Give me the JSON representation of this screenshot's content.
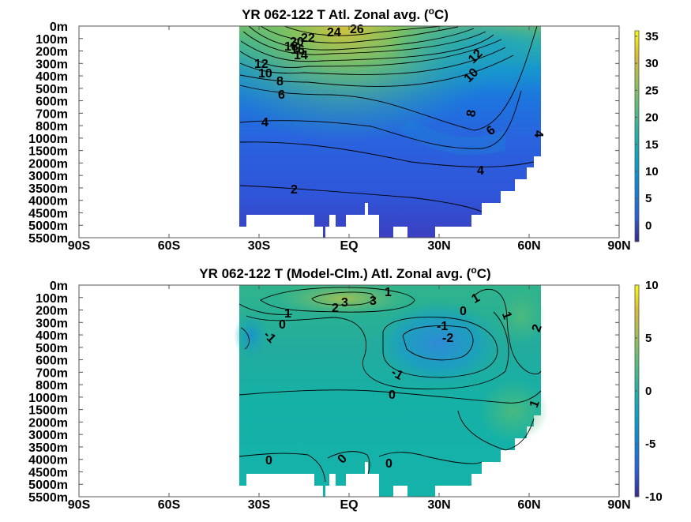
{
  "chart_data": [
    {
      "type": "heatmap",
      "title": "YR 062-122 T Atl. Zonal avg. (",
      "title_unit_sup": "o",
      "title_unit_end": "C)",
      "xlabel": "",
      "ylabel": "",
      "x_ticks": [
        "90S",
        "60S",
        "30S",
        "EQ",
        "30N",
        "60N",
        "90N"
      ],
      "x_range": [
        -90,
        90
      ],
      "y_ticks": [
        "0m",
        "100m",
        "200m",
        "300m",
        "400m",
        "500m",
        "600m",
        "700m",
        "800m",
        "1000m",
        "1500m",
        "2000m",
        "3000m",
        "3500m",
        "4000m",
        "4500m",
        "5000m",
        "5500m"
      ],
      "colorbar": {
        "ticks": [
          "35",
          "30",
          "25",
          "20",
          "15",
          "10",
          "5",
          "0"
        ],
        "range": [
          -3,
          36
        ],
        "colormap": "parula"
      },
      "data_extent_lat": [
        -35,
        63
      ],
      "contour_labels": [
        {
          "text": "26",
          "lat": 1,
          "lev": 0.3
        },
        {
          "text": "24",
          "lat": -4,
          "lev": 0.5
        },
        {
          "text": "22",
          "lat": -14,
          "lev": 1.0
        },
        {
          "text": "20",
          "lat": -17,
          "lev": 1.2
        },
        {
          "text": "18",
          "lat": -19,
          "lev": 1.6
        },
        {
          "text": "16",
          "lat": -16,
          "lev": 1.9
        },
        {
          "text": "14",
          "lat": -15,
          "lev": 2.5
        },
        {
          "text": "12",
          "lat": -27,
          "lev": 3.2
        },
        {
          "text": "10",
          "lat": -26,
          "lev": 3.9
        },
        {
          "text": "8",
          "lat": -20,
          "lev": 4.6
        },
        {
          "text": "6",
          "lat": -21,
          "lev": 5.7
        },
        {
          "text": "4",
          "lat": -28,
          "lev": 8.1
        },
        {
          "text": "2",
          "lat": -16,
          "lev": 13.1
        },
        {
          "text": "12",
          "lat": 44,
          "lev": 2.4
        },
        {
          "text": "10",
          "lat": 42,
          "lev": 3.8
        },
        {
          "text": "8",
          "lat": 40,
          "lev": 7.2
        },
        {
          "text": "6",
          "lat": 47,
          "lev": 8.9
        },
        {
          "text": "4",
          "lat": 63,
          "lev": 9.3
        },
        {
          "text": "4",
          "lat": 43,
          "lev": 11.5
        }
      ]
    },
    {
      "type": "heatmap",
      "title": "YR 062-122 T (Model-Clm.) Atl. Zonal avg. (",
      "title_unit_sup": "o",
      "title_unit_end": "C)",
      "xlabel": "",
      "ylabel": "",
      "x_ticks": [
        "90S",
        "60S",
        "30S",
        "EQ",
        "30N",
        "60N",
        "90N"
      ],
      "x_range": [
        -90,
        90
      ],
      "y_ticks": [
        "0m",
        "100m",
        "200m",
        "300m",
        "400m",
        "500m",
        "600m",
        "700m",
        "800m",
        "1000m",
        "1500m",
        "2000m",
        "3000m",
        "3500m",
        "4000m",
        "4500m",
        "5000m",
        "5500m"
      ],
      "colorbar": {
        "ticks": [
          "10",
          "5",
          "0",
          "-5",
          "-10"
        ],
        "range": [
          -10,
          10
        ],
        "colormap": "parula"
      },
      "data_extent_lat": [
        -35,
        63
      ],
      "contour_labels": [
        {
          "text": "1",
          "lat": 14,
          "lev": 0.4
        },
        {
          "text": "3",
          "lat": 1,
          "lev": 1.3
        },
        {
          "text": "3",
          "lat": 10,
          "lev": 1.3
        },
        {
          "text": "2",
          "lat": -3,
          "lev": 1.9
        },
        {
          "text": "1",
          "lat": -19,
          "lev": 2.4
        },
        {
          "text": "0",
          "lat": -20,
          "lev": 3.2
        },
        {
          "text": "-1",
          "lat": -33,
          "lev": 4.2
        },
        {
          "text": "-1",
          "lat": 29,
          "lev": 3.5
        },
        {
          "text": "-2",
          "lat": 32,
          "lev": 4.5
        },
        {
          "text": "0",
          "lat": 39,
          "lev": 2.2
        },
        {
          "text": "1",
          "lat": 46,
          "lev": 1.2
        },
        {
          "text": "1",
          "lat": 54,
          "lev": 2.9
        },
        {
          "text": "2",
          "lat": 62,
          "lev": 3.6
        },
        {
          "text": "-1",
          "lat": 20,
          "lev": 7.7
        },
        {
          "text": "0",
          "lat": 14,
          "lev": 9.3
        },
        {
          "text": "1",
          "lat": 62,
          "lev": 10.1
        },
        {
          "text": "0",
          "lat": -24,
          "lev": 14.8
        },
        {
          "text": "0",
          "lat": 0,
          "lev": 14.6
        },
        {
          "text": "0",
          "lat": 14,
          "lev": 15.1
        }
      ]
    }
  ]
}
